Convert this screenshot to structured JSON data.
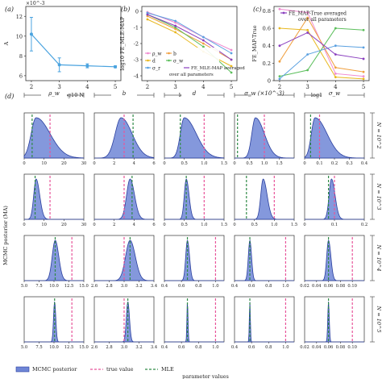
{
  "panel_labels": {
    "a": "(a)",
    "b": "(b)",
    "c": "(c)",
    "d": "(d)"
  },
  "colors": {
    "posterior_fill": "#6f86d6",
    "posterior_line": "#2a3f9e",
    "true_value": "#e8559a",
    "mle": "#2f8a46",
    "panel_a": "#4aa3df",
    "rho": "#f08ad0",
    "b": "#f0a040",
    "d": "#e8b820",
    "sigma_r": "#5aa0e0",
    "sigma_w": "#5cbf5c",
    "avg": "#8a3fbf"
  },
  "chart_data": [
    {
      "id": "a",
      "type": "line",
      "title": "",
      "xlabel": "log10 N",
      "ylabel": "A",
      "y_exponent": "×10^-3",
      "x": [
        2,
        3,
        4,
        5
      ],
      "values": [
        10.2,
        7.1,
        7.0,
        6.9
      ],
      "errors": [
        1.7,
        0.7,
        0.2,
        0.1
      ],
      "xlim": [
        1.8,
        5.2
      ],
      "ylim": [
        5.5,
        13
      ],
      "xticks": [
        "2",
        "3",
        "4",
        "5"
      ],
      "yticks": [
        "6",
        "8",
        "10",
        "12"
      ]
    },
    {
      "id": "b",
      "type": "line",
      "xlabel": "log10 N",
      "ylabel": "log10 FE_MLE-MAP",
      "x": [
        2,
        3,
        4,
        5
      ],
      "xlim": [
        1.8,
        5.2
      ],
      "ylim": [
        -4.3,
        0.3
      ],
      "xticks": [
        "2",
        "3",
        "4",
        "5"
      ],
      "yticks": [
        "0",
        "-1",
        "-2",
        "-3",
        "-4"
      ],
      "legend_position": "bottom-left",
      "series": [
        {
          "name": "ρ_w",
          "values": [
            -0.05,
            -0.7,
            -1.6,
            -2.4
          ]
        },
        {
          "name": "b",
          "values": [
            -0.3,
            -1.1,
            -2.0,
            -3.0
          ]
        },
        {
          "name": "d",
          "values": [
            -0.5,
            -1.3,
            -2.5,
            -3.4
          ]
        },
        {
          "name": "σ_w",
          "values": [
            -0.2,
            -1.0,
            -2.2,
            -3.8
          ]
        },
        {
          "name": "σ_r",
          "values": [
            -0.1,
            -0.6,
            -1.6,
            -2.6
          ]
        },
        {
          "name": "FE_MLE-MAP averaged over all parameters",
          "values": [
            -0.2,
            -0.9,
            -1.8,
            -3.0
          ]
        }
      ]
    },
    {
      "id": "c",
      "type": "line",
      "xlabel": "log10 N",
      "ylabel": "FE_MAP-True",
      "x": [
        2,
        3,
        4,
        5
      ],
      "xlim": [
        1.8,
        5.2
      ],
      "ylim": [
        0,
        0.85
      ],
      "xticks": [
        "2",
        "3",
        "4",
        "5"
      ],
      "yticks": [
        "0",
        "0.2",
        "0.4",
        "0.6",
        "0.8"
      ],
      "legend_position": "top",
      "series": [
        {
          "values": [
            0.82,
            0.78,
            0.08,
            0.05
          ]
        },
        {
          "values": [
            0.22,
            0.72,
            0.15,
            0.1
          ]
        },
        {
          "values": [
            0.6,
            0.58,
            0.04,
            0.02
          ]
        },
        {
          "values": [
            0.05,
            0.12,
            0.6,
            0.58
          ]
        },
        {
          "values": [
            0.02,
            0.3,
            0.4,
            0.38
          ]
        },
        {
          "name": "FE_MAP-True averaged over all parameters",
          "values": [
            0.4,
            0.55,
            0.3,
            0.25
          ]
        }
      ]
    },
    {
      "id": "d",
      "type": "area",
      "ylabel": "MCMC posterior (MA)",
      "xlabel": "parameter values",
      "columns": [
        {
          "title": "ρ_w",
          "multiplier": ""
        },
        {
          "title": "b",
          "multiplier": ""
        },
        {
          "title": "d",
          "multiplier": ""
        },
        {
          "title": "σ_w",
          "multiplier": "(×10^-3)"
        },
        {
          "title": "σ_w",
          "multiplier": ""
        }
      ],
      "rows": [
        {
          "label": "N = 10^2",
          "panels": [
            {
              "xlim": [
                0,
                30
              ],
              "xticks": [
                "0",
                "10",
                "20",
                "30"
              ],
              "mode": 6,
              "sd_l": 2.5,
              "sd_r": 7,
              "true": 13,
              "mle": 4
            },
            {
              "xlim": [
                0,
                6
              ],
              "xticks": [
                "0",
                "2",
                "4",
                "6"
              ],
              "mode": 2.7,
              "sd_l": 0.6,
              "sd_r": 1.1,
              "true": 3,
              "mle": 3.9
            },
            {
              "xlim": [
                0,
                1.5
              ],
              "xticks": [
                "0",
                "0.5",
                "1.0",
                "1.5"
              ],
              "mode": 0.5,
              "sd_l": 0.1,
              "sd_r": 0.3,
              "true": 1,
              "mle": 0.4
            },
            {
              "xlim": [
                0,
                2
              ],
              "xticks": [
                "0",
                "0.5",
                "1.0",
                "1.5"
              ],
              "mode": 0.7,
              "sd_l": 0.12,
              "sd_r": 0.3,
              "true": 1,
              "mle": 0.1
            },
            {
              "xlim": [
                0,
                0.4
              ],
              "xticks": [
                "0",
                "0.1",
                "0.2",
                "0.3",
                "0.4"
              ],
              "mode": 0.07,
              "sd_l": 0.025,
              "sd_r": 0.08,
              "true": 0.1,
              "mle": 0.04
            }
          ]
        },
        {
          "label": "N = 10^3",
          "panels": [
            {
              "xlim": [
                0,
                30
              ],
              "xticks": [
                "0",
                "10",
                "20",
                "30"
              ],
              "mode": 6,
              "sd_l": 1.2,
              "sd_r": 1.8,
              "true": 13,
              "mle": 5.5
            },
            {
              "xlim": [
                0,
                6
              ],
              "xticks": [
                "0",
                "2",
                "4",
                "6"
              ],
              "mode": 3.6,
              "sd_l": 0.35,
              "sd_r": 0.45,
              "true": 3,
              "mle": 3.8
            },
            {
              "xlim": [
                0,
                1.5
              ],
              "xticks": [
                "0",
                "0.5",
                "1.0",
                "1.5"
              ],
              "mode": 0.55,
              "sd_l": 0.05,
              "sd_r": 0.07,
              "true": 1,
              "mle": 0.55
            },
            {
              "xlim": [
                0,
                1.5
              ],
              "xticks": [
                "0",
                "0.5",
                "1.0",
                "1.5"
              ],
              "mode": 0.72,
              "sd_l": 0.06,
              "sd_r": 0.1,
              "true": 1,
              "mle": 0.3
            },
            {
              "xlim": [
                0,
                0.2
              ],
              "xticks": [
                "0",
                "0.1",
                "0.2"
              ],
              "mode": 0.09,
              "sd_l": 0.008,
              "sd_r": 0.012,
              "true": 0.1,
              "mle": 0.08
            }
          ]
        },
        {
          "label": "N = 10^4",
          "panels": [
            {
              "xlim": [
                5,
                15
              ],
              "xticks": [
                "5.0",
                "7.5",
                "10.0",
                "12.5",
                "15.0"
              ],
              "mode": 10.2,
              "sd_l": 0.5,
              "sd_r": 0.6,
              "true": 13,
              "mle": 10.2
            },
            {
              "xlim": [
                2.6,
                3.4
              ],
              "xticks": [
                "2.6",
                "2.8",
                "3.0",
                "3.2",
                "3.4"
              ],
              "mode": 3.08,
              "sd_l": 0.06,
              "sd_r": 0.07,
              "true": 3,
              "mle": 3.08
            },
            {
              "xlim": [
                0.4,
                1.1
              ],
              "xticks": [
                "0.4",
                "0.6",
                "0.8",
                "1.0"
              ],
              "mode": 0.67,
              "sd_l": 0.02,
              "sd_r": 0.025,
              "true": 1,
              "mle": 0.67
            },
            {
              "xlim": [
                0.4,
                1.1
              ],
              "xticks": [
                "0.4",
                "0.6",
                "0.8",
                "1.0"
              ],
              "mode": 0.58,
              "sd_l": 0.018,
              "sd_r": 0.02,
              "true": 1,
              "mle": 0.58
            },
            {
              "xlim": [
                0.02,
                0.12
              ],
              "xticks": [
                "0.02",
                "0.04",
                "0.06",
                "0.08",
                "0.10"
              ],
              "mode": 0.06,
              "sd_l": 0.003,
              "sd_r": 0.004,
              "true": 0.1,
              "mle": 0.06
            }
          ]
        },
        {
          "label": "N = 10^5",
          "panels": [
            {
              "xlim": [
                5,
                15
              ],
              "xticks": [
                "5.0",
                "7.5",
                "10.0",
                "12.5",
                "15.0"
              ],
              "mode": 10.1,
              "sd_l": 0.18,
              "sd_r": 0.2,
              "true": 13,
              "mle": 10.1
            },
            {
              "xlim": [
                2.6,
                3.4
              ],
              "xticks": [
                "2.6",
                "2.8",
                "3.0",
                "3.2",
                "3.4"
              ],
              "mode": 3.05,
              "sd_l": 0.02,
              "sd_r": 0.022,
              "true": 3,
              "mle": 3.05
            },
            {
              "xlim": [
                0.4,
                1.1
              ],
              "xticks": [
                "0.4",
                "0.6",
                "0.8",
                "1.0"
              ],
              "mode": 0.67,
              "sd_l": 0.006,
              "sd_r": 0.007,
              "true": 1,
              "mle": 0.67
            },
            {
              "xlim": [
                0.4,
                1.1
              ],
              "xticks": [
                "0.4",
                "0.6",
                "0.8",
                "1.0"
              ],
              "mode": 0.58,
              "sd_l": 0.006,
              "sd_r": 0.006,
              "true": 1,
              "mle": 0.58
            },
            {
              "xlim": [
                0.02,
                0.12
              ],
              "xticks": [
                "0.02",
                "0.04",
                "0.06",
                "0.08",
                "0.10"
              ],
              "mode": 0.06,
              "sd_l": 0.0012,
              "sd_r": 0.0013,
              "true": 0.1,
              "mle": 0.06
            }
          ]
        }
      ],
      "legend": {
        "posterior": "MCMC posterior",
        "true": "true value",
        "mle": "MLE"
      }
    }
  ]
}
